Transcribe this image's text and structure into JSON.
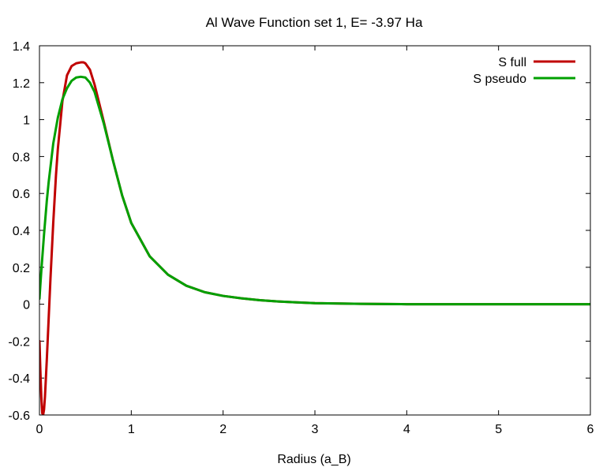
{
  "chart_data": {
    "type": "line",
    "title": "Al   Wave Function set 1, E=   -3.97 Ha",
    "xlabel": "Radius (a_B)",
    "ylabel": "",
    "xlim": [
      0,
      6
    ],
    "ylim": [
      -0.6,
      1.4
    ],
    "xticks": [
      0,
      1,
      2,
      3,
      4,
      5,
      6
    ],
    "yticks": [
      -0.6,
      -0.4,
      -0.2,
      0,
      0.2,
      0.4,
      0.6,
      0.8,
      1,
      1.2,
      1.4
    ],
    "xtick_labels": [
      "0",
      "1",
      "2",
      "3",
      "4",
      "5",
      "6"
    ],
    "ytick_labels": [
      "-0.6",
      "-0.4",
      "-0.2",
      "0",
      "0.2",
      "0.4",
      "0.6",
      "0.8",
      "1",
      "1.2",
      "1.4"
    ],
    "grid": false,
    "legend_position": "top-right",
    "series": [
      {
        "name": "S full",
        "color": "#c00000",
        "x": [
          0,
          0.01,
          0.02,
          0.03,
          0.04,
          0.05,
          0.06,
          0.08,
          0.1,
          0.12,
          0.15,
          0.18,
          0.2,
          0.25,
          0.3,
          0.35,
          0.4,
          0.45,
          0.48,
          0.5,
          0.55,
          0.6,
          0.7,
          0.8,
          0.9,
          1.0,
          1.2,
          1.4,
          1.6,
          1.8,
          2.0,
          2.2,
          2.4,
          2.6,
          2.8,
          3.0,
          3.5,
          4.0,
          5.0,
          6.0
        ],
        "values": [
          -0.2,
          -0.36,
          -0.5,
          -0.59,
          -0.6,
          -0.57,
          -0.5,
          -0.3,
          -0.08,
          0.14,
          0.44,
          0.7,
          0.84,
          1.1,
          1.24,
          1.29,
          1.305,
          1.31,
          1.31,
          1.305,
          1.27,
          1.19,
          0.99,
          0.78,
          0.59,
          0.44,
          0.26,
          0.16,
          0.1,
          0.065,
          0.045,
          0.032,
          0.022,
          0.015,
          0.01,
          0.006,
          0.002,
          0.0,
          0.0,
          0.0
        ]
      },
      {
        "name": "S pseudo",
        "color": "#00a000",
        "x": [
          0,
          0.02,
          0.05,
          0.08,
          0.1,
          0.15,
          0.2,
          0.25,
          0.3,
          0.35,
          0.4,
          0.45,
          0.5,
          0.55,
          0.6,
          0.7,
          0.8,
          0.9,
          1.0,
          1.2,
          1.4,
          1.6,
          1.8,
          2.0,
          2.2,
          2.4,
          2.6,
          2.8,
          3.0,
          3.5,
          4.0,
          5.0,
          6.0
        ],
        "values": [
          0.03,
          0.18,
          0.38,
          0.56,
          0.66,
          0.87,
          1.01,
          1.11,
          1.17,
          1.21,
          1.228,
          1.232,
          1.228,
          1.2,
          1.15,
          0.98,
          0.78,
          0.59,
          0.44,
          0.26,
          0.16,
          0.1,
          0.065,
          0.045,
          0.032,
          0.022,
          0.015,
          0.01,
          0.006,
          0.002,
          0.0,
          0.0,
          0.0
        ]
      }
    ]
  }
}
